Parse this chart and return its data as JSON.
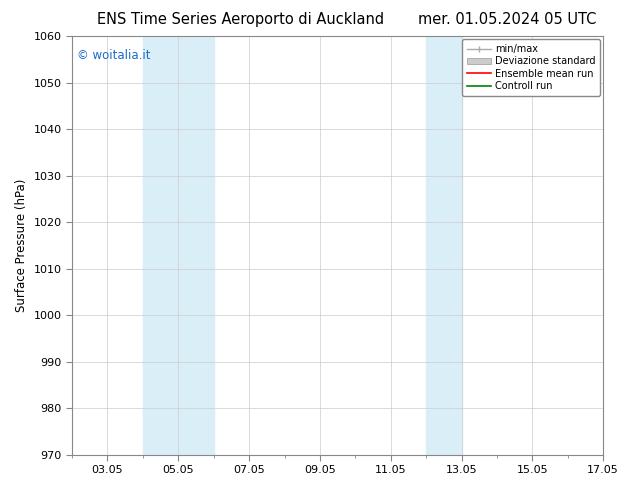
{
  "title_left": "ENS Time Series Aeroporto di Auckland",
  "title_right": "mer. 01.05.2024 05 UTC",
  "ylabel": "Surface Pressure (hPa)",
  "ylim": [
    970,
    1060
  ],
  "yticks": [
    970,
    980,
    990,
    1000,
    1010,
    1020,
    1030,
    1040,
    1050,
    1060
  ],
  "xtick_labels": [
    "03.05",
    "05.05",
    "07.05",
    "09.05",
    "11.05",
    "13.05",
    "15.05",
    "17.05"
  ],
  "xtick_days": [
    3,
    5,
    7,
    9,
    11,
    13,
    15,
    17
  ],
  "xlim_day_start": 2,
  "xlim_day_end": 17,
  "shaded_bands": [
    {
      "x0_day": 4,
      "x1_day": 6
    },
    {
      "x0_day": 12,
      "x1_day": 13
    }
  ],
  "band_color": "#daeef8",
  "watermark_text": "© woitalia.it",
  "watermark_color": "#1a6dc9",
  "legend_entries": [
    {
      "label": "min/max"
    },
    {
      "label": "Deviazione standard"
    },
    {
      "label": "Ensemble mean run"
    },
    {
      "label": "Controll run"
    }
  ],
  "bg_color": "#ffffff",
  "grid_color": "#cccccc",
  "title_fontsize": 10.5,
  "label_fontsize": 8.5,
  "tick_fontsize": 8,
  "watermark_fontsize": 8.5
}
